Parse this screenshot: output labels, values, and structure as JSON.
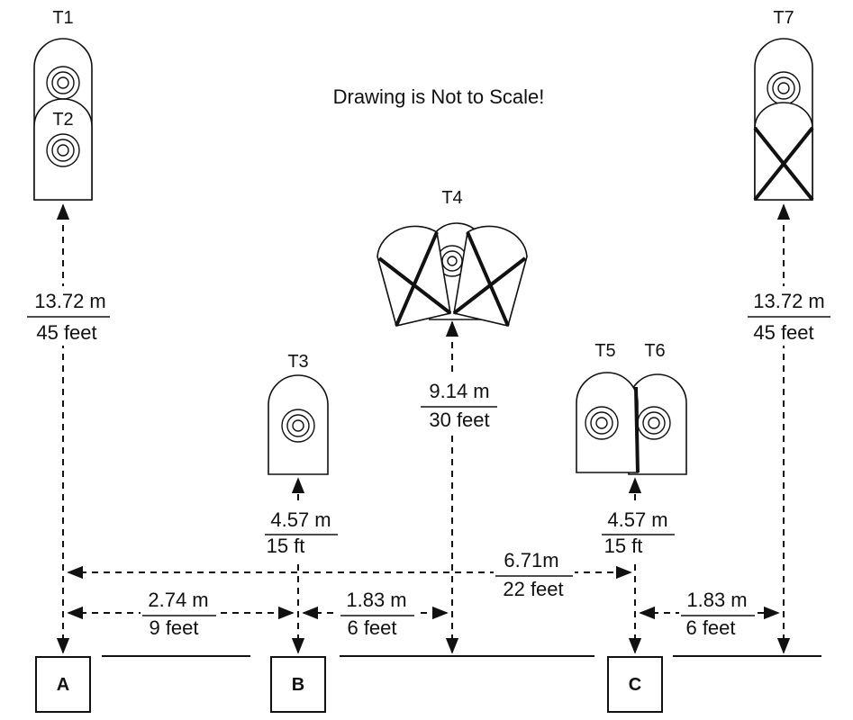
{
  "note": "Drawing is Not to Scale!",
  "targets": {
    "t1": "T1",
    "t2": "T2",
    "t3": "T3",
    "t4": "T4",
    "t5": "T5",
    "t6": "T6",
    "t7": "T7"
  },
  "stations": {
    "a": "A",
    "b": "B",
    "c": "C"
  },
  "distances": {
    "a_t1": {
      "metric": "13.72 m",
      "imperial": "45 feet"
    },
    "c_t7": {
      "metric": "13.72 m",
      "imperial": "45 feet"
    },
    "t4": {
      "metric": "9.14 m",
      "imperial": "30 feet"
    },
    "b_t3": {
      "metric": "4.57 m",
      "imperial": "15 ft"
    },
    "c_t56": {
      "metric": "4.57 m",
      "imperial": "15 ft"
    },
    "a_c": {
      "metric": "6.71m",
      "imperial": "22 feet"
    },
    "a_b": {
      "metric": "2.74 m",
      "imperial": "9 feet"
    },
    "b_t4": {
      "metric": "1.83 m",
      "imperial": "6 feet"
    },
    "c_t7_lateral": {
      "metric": "1.83 m",
      "imperial": "6 feet"
    }
  }
}
